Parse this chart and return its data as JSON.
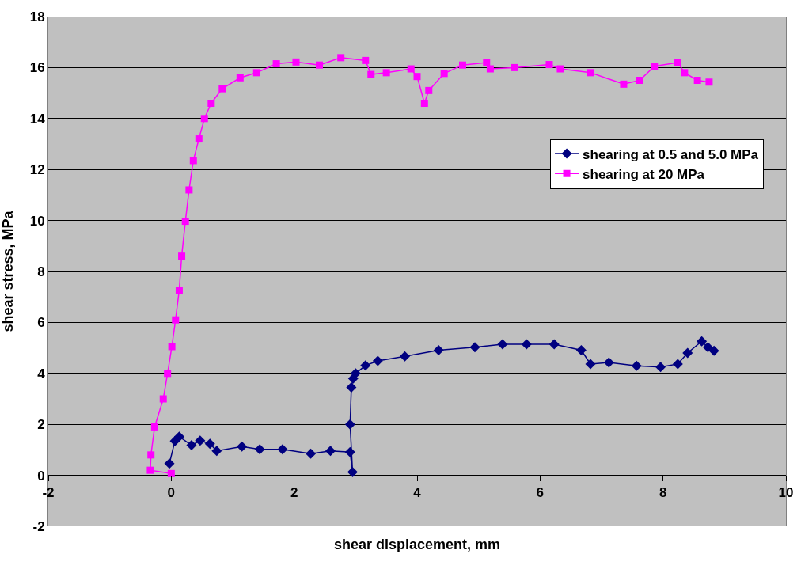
{
  "chart_data": {
    "type": "line",
    "xlabel": "shear displacement, mm",
    "ylabel": "shear stress, MPa",
    "xlim": [
      -2,
      10
    ],
    "xticks": [
      -2,
      0,
      2,
      4,
      6,
      8,
      10
    ],
    "ylim": [
      -2,
      18
    ],
    "yticks": [
      -2,
      0,
      2,
      4,
      6,
      8,
      10,
      12,
      14,
      16,
      18
    ],
    "grid": "y",
    "legend": "right",
    "series": [
      {
        "name": "shearing at 0.5 and 5.0 MPa",
        "color": "#000080",
        "marker": "diamond",
        "x": [
          -0.03,
          0.06,
          0.13,
          0.33,
          0.47,
          0.63,
          0.74,
          1.15,
          1.44,
          1.81,
          2.27,
          2.59,
          2.91,
          2.95,
          2.91,
          2.93,
          2.96,
          3.0,
          3.16,
          3.36,
          3.8,
          4.35,
          4.94,
          5.39,
          5.78,
          6.23,
          6.67,
          6.82,
          7.12,
          7.57,
          7.96,
          8.24,
          8.4,
          8.63,
          8.73,
          8.83
        ],
        "values": [
          0.46,
          1.35,
          1.52,
          1.18,
          1.36,
          1.24,
          0.96,
          1.13,
          1.02,
          1.02,
          0.85,
          0.96,
          0.91,
          0.13,
          2.0,
          3.45,
          3.8,
          4.0,
          4.31,
          4.49,
          4.67,
          4.91,
          5.03,
          5.14,
          5.14,
          5.14,
          4.91,
          4.37,
          4.43,
          4.3,
          4.25,
          4.37,
          4.8,
          5.26,
          5.03,
          4.89
        ]
      },
      {
        "name": "shearing at 20 MPa",
        "color": "#ff00ff",
        "marker": "square",
        "x": [
          0.0,
          -0.34,
          -0.33,
          -0.27,
          -0.13,
          -0.06,
          0.01,
          0.07,
          0.13,
          0.17,
          0.23,
          0.29,
          0.36,
          0.45,
          0.54,
          0.65,
          0.83,
          1.12,
          1.39,
          1.71,
          2.03,
          2.41,
          2.76,
          3.16,
          3.25,
          3.5,
          3.9,
          4.0,
          4.12,
          4.19,
          4.44,
          4.74,
          5.13,
          5.19,
          5.58,
          6.15,
          6.33,
          6.82,
          7.36,
          7.62,
          7.86,
          8.24,
          8.35,
          8.56,
          8.75
        ],
        "values": [
          0.07,
          0.2,
          0.8,
          1.9,
          3.0,
          4.0,
          5.05,
          6.1,
          7.27,
          8.6,
          9.97,
          11.2,
          12.35,
          13.2,
          14.0,
          14.6,
          15.17,
          15.6,
          15.8,
          16.15,
          16.22,
          16.1,
          16.39,
          16.28,
          15.73,
          15.8,
          15.95,
          15.65,
          14.6,
          15.1,
          15.77,
          16.1,
          16.2,
          15.95,
          16.0,
          16.12,
          15.95,
          15.8,
          15.35,
          15.5,
          16.05,
          16.2,
          15.8,
          15.5,
          15.43
        ]
      }
    ]
  }
}
